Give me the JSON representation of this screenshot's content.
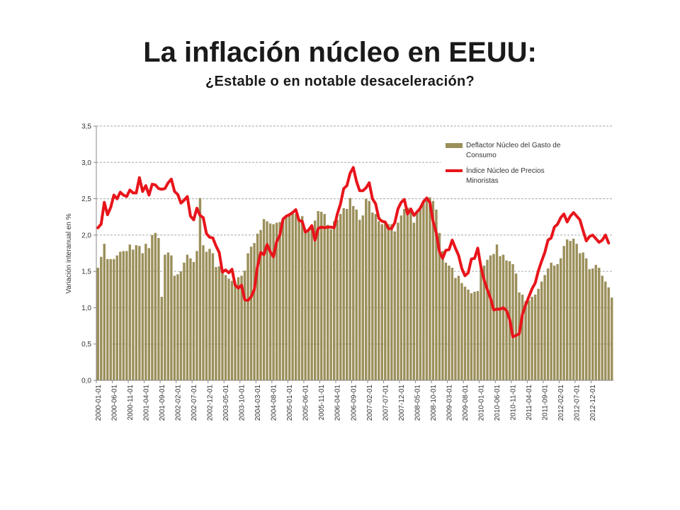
{
  "title": "La inflación núcleo en EEUU:",
  "subtitle": "¿Estable o en notable desaceleración?",
  "chart_data": {
    "type": "bar+line",
    "ylabel": "Variación interanual en %",
    "ylim": [
      0,
      3.5
    ],
    "yticks": [
      "0,0",
      "0,5",
      "1,0",
      "1,5",
      "2,0",
      "2,5",
      "3,0",
      "3,5"
    ],
    "grid": true,
    "legend_position": "top-right",
    "x_start": "2000-01-01",
    "x_tick_labels": [
      "2000-01-01",
      "2000-06-01",
      "2000-11-01",
      "2001-04-01",
      "2001-09-01",
      "2002-02-01",
      "2002-07-01",
      "2002-12-01",
      "2003-05-01",
      "2003-10-01",
      "2004-03-01",
      "2004-08-01",
      "2005-01-01",
      "2005-06-01",
      "2005-11-01",
      "2006-04-01",
      "2006-09-01",
      "2007-02-01",
      "2007-07-01",
      "2007-12-01",
      "2008-05-01",
      "2008-10-01",
      "2009-03-01",
      "2009-08-01",
      "2010-01-01",
      "2010-06-01",
      "2010-11-01",
      "2011-04-01",
      "2011-09-01",
      "2012-02-01",
      "2012-07-01",
      "2012-12-01"
    ],
    "series": [
      {
        "name": "Deflactor Núcleo del Gasto de Consumo",
        "type": "bar",
        "color": "#9b8f5a",
        "values": [
          1.55,
          1.7,
          1.88,
          1.67,
          1.67,
          1.67,
          1.72,
          1.77,
          1.78,
          1.78,
          1.87,
          1.8,
          1.86,
          1.85,
          1.75,
          1.88,
          1.82,
          2.0,
          2.03,
          1.96,
          1.15,
          1.73,
          1.76,
          1.72,
          1.44,
          1.46,
          1.5,
          1.62,
          1.73,
          1.68,
          1.63,
          1.78,
          2.51,
          1.86,
          1.77,
          1.81,
          1.75,
          1.56,
          1.57,
          1.52,
          1.45,
          1.4,
          1.37,
          1.35,
          1.42,
          1.44,
          1.51,
          1.75,
          1.84,
          1.89,
          2.02,
          2.07,
          2.22,
          2.19,
          2.16,
          2.15,
          2.17,
          2.18,
          2.2,
          2.26,
          2.3,
          2.3,
          2.29,
          2.22,
          2.26,
          2.05,
          2.06,
          2.11,
          2.2,
          2.33,
          2.32,
          2.29,
          2.14,
          2.08,
          2.19,
          2.21,
          2.29,
          2.37,
          2.36,
          2.51,
          2.4,
          2.35,
          2.21,
          2.27,
          2.5,
          2.47,
          2.31,
          2.29,
          2.19,
          2.15,
          2.18,
          2.15,
          2.15,
          2.05,
          2.17,
          2.27,
          2.36,
          2.38,
          2.33,
          2.17,
          2.32,
          2.4,
          2.47,
          2.5,
          2.52,
          2.47,
          2.35,
          2.03,
          1.78,
          1.62,
          1.58,
          1.55,
          1.41,
          1.44,
          1.34,
          1.29,
          1.25,
          1.2,
          1.22,
          1.23,
          1.54,
          1.58,
          1.66,
          1.72,
          1.74,
          1.87,
          1.71,
          1.73,
          1.65,
          1.64,
          1.6,
          1.47,
          1.21,
          1.18,
          1.09,
          1.1,
          1.15,
          1.18,
          1.26,
          1.36,
          1.45,
          1.54,
          1.62,
          1.58,
          1.6,
          1.68,
          1.85,
          1.94,
          1.92,
          1.95,
          1.88,
          1.75,
          1.76,
          1.68,
          1.53,
          1.54,
          1.59,
          1.55,
          1.44,
          1.36,
          1.28,
          1.14
        ]
      },
      {
        "name": "Índice Núcleo de Precios Minoristas",
        "type": "line",
        "color": "#e8141b",
        "values": [
          2.1,
          2.15,
          2.45,
          2.28,
          2.38,
          2.55,
          2.5,
          2.59,
          2.55,
          2.53,
          2.62,
          2.58,
          2.58,
          2.79,
          2.6,
          2.68,
          2.55,
          2.7,
          2.69,
          2.64,
          2.63,
          2.64,
          2.72,
          2.77,
          2.6,
          2.56,
          2.44,
          2.48,
          2.53,
          2.26,
          2.21,
          2.37,
          2.27,
          2.24,
          2.02,
          1.97,
          1.96,
          1.85,
          1.76,
          1.49,
          1.52,
          1.48,
          1.53,
          1.31,
          1.27,
          1.31,
          1.11,
          1.1,
          1.15,
          1.25,
          1.57,
          1.76,
          1.73,
          1.87,
          1.77,
          1.7,
          1.91,
          2.0,
          2.22,
          2.26,
          2.28,
          2.31,
          2.35,
          2.2,
          2.19,
          2.04,
          2.07,
          2.13,
          1.93,
          2.09,
          2.11,
          2.1,
          2.11,
          2.11,
          2.1,
          2.29,
          2.43,
          2.64,
          2.68,
          2.85,
          2.93,
          2.74,
          2.61,
          2.61,
          2.65,
          2.72,
          2.5,
          2.43,
          2.23,
          2.19,
          2.18,
          2.09,
          2.09,
          2.17,
          2.36,
          2.45,
          2.49,
          2.29,
          2.36,
          2.27,
          2.32,
          2.37,
          2.46,
          2.51,
          2.45,
          2.19,
          2.03,
          1.77,
          1.68,
          1.79,
          1.8,
          1.93,
          1.82,
          1.72,
          1.54,
          1.44,
          1.48,
          1.67,
          1.68,
          1.82,
          1.56,
          1.38,
          1.25,
          1.13,
          0.97,
          0.98,
          0.98,
          1.0,
          0.96,
          0.84,
          0.6,
          0.62,
          0.64,
          0.91,
          1.04,
          1.15,
          1.26,
          1.34,
          1.51,
          1.64,
          1.76,
          1.93,
          1.96,
          2.11,
          2.15,
          2.24,
          2.29,
          2.18,
          2.26,
          2.31,
          2.26,
          2.21,
          2.06,
          1.92,
          1.98,
          2.0,
          1.95,
          1.9,
          1.93,
          2.0,
          1.89
        ]
      }
    ]
  }
}
